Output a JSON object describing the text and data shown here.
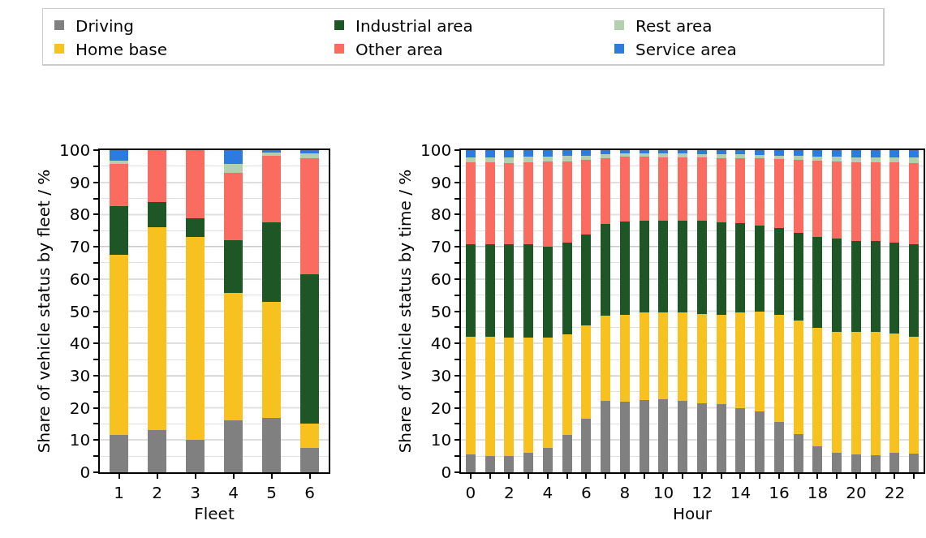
{
  "chart_data": [
    {
      "type": "bar",
      "stacked": true,
      "xlabel": "Fleet",
      "ylabel": "Share of vehicle status by fleet / %",
      "x": [
        1,
        2,
        3,
        4,
        5,
        6
      ],
      "xlim": [
        0.5,
        6.5
      ],
      "xticks": [
        1,
        2,
        3,
        4,
        5,
        6
      ],
      "ylim": [
        0,
        100
      ],
      "yticks": [
        0,
        {
          "value": 5,
          "label": null
        },
        10,
        {
          "value": 15,
          "label": null
        },
        20,
        {
          "value": 25,
          "label": null
        },
        30,
        {
          "value": 35,
          "label": null
        },
        40,
        {
          "value": 45,
          "label": null
        },
        50,
        {
          "value": 55,
          "label": null
        },
        60,
        {
          "value": 65,
          "label": null
        },
        70,
        {
          "value": 75,
          "label": null
        },
        80,
        {
          "value": 85,
          "label": null
        },
        90,
        {
          "value": 95,
          "label": null
        },
        100
      ],
      "grid": "y",
      "legend": "top",
      "series": [
        {
          "name": "Driving",
          "color": "#808080",
          "values": [
            11.7,
            13.2,
            10,
            16,
            17,
            7.6
          ]
        },
        {
          "name": "Home base",
          "color": "#f7c21f",
          "values": [
            55.9,
            62.8,
            63,
            39.6,
            36,
            7.4
          ]
        },
        {
          "name": "Industrial area",
          "color": "#1e5625",
          "values": [
            14.9,
            8,
            5.8,
            16.4,
            24.7,
            46.5
          ]
        },
        {
          "name": "Other area",
          "color": "#f96c5f",
          "values": [
            13.3,
            16,
            21.2,
            21,
            20.5,
            36
          ]
        },
        {
          "name": "Rest area",
          "color": "#b3cfb0",
          "values": [
            1,
            0,
            0,
            2.8,
            1,
            1.5
          ]
        },
        {
          "name": "Service area",
          "color": "#2e7be0",
          "values": [
            3.2,
            0,
            0,
            4.2,
            0.8,
            1
          ]
        }
      ]
    },
    {
      "type": "bar",
      "stacked": true,
      "xlabel": "Hour",
      "ylabel": "Share of vehicle status by time / %",
      "x": [
        0,
        1,
        2,
        3,
        4,
        5,
        6,
        7,
        8,
        9,
        10,
        11,
        12,
        13,
        14,
        15,
        16,
        17,
        18,
        19,
        20,
        21,
        22,
        23
      ],
      "xlim": [
        -0.5,
        23.5
      ],
      "xticks": [
        0,
        {
          "value": 1,
          "label": null
        },
        2,
        {
          "value": 3,
          "label": null
        },
        4,
        {
          "value": 5,
          "label": null
        },
        6,
        {
          "value": 7,
          "label": null
        },
        8,
        {
          "value": 9,
          "label": null
        },
        10,
        {
          "value": 11,
          "label": null
        },
        12,
        {
          "value": 13,
          "label": null
        },
        14,
        {
          "value": 15,
          "label": null
        },
        16,
        {
          "value": 17,
          "label": null
        },
        18,
        {
          "value": 19,
          "label": null
        },
        20,
        {
          "value": 21,
          "label": null
        },
        22,
        {
          "value": 23,
          "label": null
        }
      ],
      "ylim": [
        0,
        100
      ],
      "yticks": [
        0,
        {
          "value": 5,
          "label": null
        },
        10,
        {
          "value": 15,
          "label": null
        },
        20,
        {
          "value": 25,
          "label": null
        },
        30,
        {
          "value": 35,
          "label": null
        },
        40,
        {
          "value": 45,
          "label": null
        },
        50,
        {
          "value": 55,
          "label": null
        },
        60,
        {
          "value": 65,
          "label": null
        },
        70,
        {
          "value": 75,
          "label": null
        },
        80,
        {
          "value": 85,
          "label": null
        },
        90,
        {
          "value": 95,
          "label": null
        },
        100
      ],
      "grid": "y",
      "series": [
        {
          "color": "#808080",
          "values": [
            5.5,
            5.0,
            5.0,
            6.0,
            7.5,
            11.5,
            16.6,
            22.2,
            21.9,
            22.4,
            22.7,
            22.2,
            21.4,
            21.1,
            19.9,
            18.9,
            15.6,
            11.8,
            8.0,
            6.0,
            5.5,
            5.2,
            6.0,
            5.7
          ]
        },
        {
          "color": "#f7c21f",
          "values": [
            36.6,
            37.1,
            36.9,
            35.9,
            34.4,
            31.4,
            29.1,
            26.5,
            27.0,
            27.1,
            26.8,
            27.3,
            27.8,
            27.8,
            29.8,
            31.0,
            33.3,
            35.4,
            36.9,
            37.6,
            38.1,
            38.4,
            37.1,
            36.4
          ]
        },
        {
          "color": "#1e5625",
          "values": [
            28.8,
            28.8,
            28.8,
            28.8,
            28.2,
            28.5,
            28.0,
            28.3,
            28.9,
            28.5,
            28.5,
            28.5,
            28.8,
            28.6,
            27.6,
            26.7,
            26.8,
            27.0,
            28.1,
            28.9,
            28.3,
            28.1,
            28.3,
            28.6
          ]
        },
        {
          "color": "#f96c5f",
          "values": [
            25.3,
            25.3,
            25.3,
            25.5,
            26.4,
            25.1,
            23.3,
            20.5,
            20.2,
            20.0,
            19.7,
            19.7,
            19.7,
            20.0,
            20.2,
            20.8,
            21.5,
            22.8,
            23.7,
            24.0,
            24.3,
            24.5,
            24.8,
            25.3
          ]
        },
        {
          "color": "#b3cfb0",
          "values": [
            1.5,
            1.5,
            1.7,
            1.8,
            1.5,
            1.7,
            1.2,
            1.2,
            0.9,
            0.9,
            1.2,
            1.2,
            1.0,
            1.2,
            1.2,
            1.0,
            1.0,
            1.2,
            1.3,
            1.5,
            1.5,
            1.5,
            1.5,
            1.7
          ]
        },
        {
          "color": "#2e7be0",
          "values": [
            2.3,
            2.3,
            2.3,
            2.0,
            2.0,
            1.8,
            1.8,
            1.3,
            1.1,
            1.1,
            1.1,
            1.1,
            1.3,
            1.3,
            1.3,
            1.5,
            1.8,
            1.8,
            2.0,
            2.0,
            2.3,
            2.3,
            2.3,
            2.3
          ]
        }
      ]
    }
  ]
}
